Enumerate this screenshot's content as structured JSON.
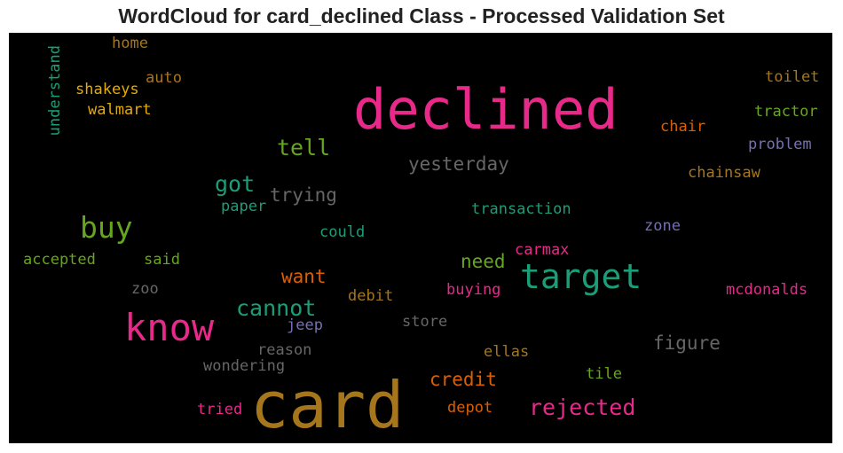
{
  "chart_data": {
    "type": "wordcloud",
    "title": "WordCloud for card_declined Class - Processed Validation Set",
    "background": "#000000",
    "palette": {
      "pink": "#e7298a",
      "orange": "#d95f02",
      "green": "#1b9e77",
      "lime": "#66a61e",
      "gold": "#a6761d",
      "amber": "#e6ab02",
      "grey": "#666666",
      "purple": "#7570b3"
    },
    "words": [
      {
        "text": "card",
        "color": "gold",
        "weight": 1.0
      },
      {
        "text": "declined",
        "color": "pink",
        "weight": 0.97
      },
      {
        "text": "know",
        "color": "pink",
        "weight": 0.7
      },
      {
        "text": "target",
        "color": "green",
        "weight": 0.62
      },
      {
        "text": "buy",
        "color": "lime",
        "weight": 0.55
      },
      {
        "text": "cannot",
        "color": "green",
        "weight": 0.45
      },
      {
        "text": "tell",
        "color": "lime",
        "weight": 0.45
      },
      {
        "text": "got",
        "color": "green",
        "weight": 0.45
      },
      {
        "text": "rejected",
        "color": "pink",
        "weight": 0.42
      },
      {
        "text": "yesterday",
        "color": "grey",
        "weight": 0.38
      },
      {
        "text": "figure",
        "color": "grey",
        "weight": 0.38
      },
      {
        "text": "trying",
        "color": "grey",
        "weight": 0.38
      },
      {
        "text": "credit",
        "color": "orange",
        "weight": 0.36
      },
      {
        "text": "want",
        "color": "orange",
        "weight": 0.36
      },
      {
        "text": "need",
        "color": "lime",
        "weight": 0.36
      },
      {
        "text": "understand",
        "color": "green",
        "weight": 0.28
      },
      {
        "text": "home",
        "color": "gold",
        "weight": 0.28
      },
      {
        "text": "auto",
        "color": "gold",
        "weight": 0.28
      },
      {
        "text": "shakeys",
        "color": "amber",
        "weight": 0.28
      },
      {
        "text": "walmart",
        "color": "amber",
        "weight": 0.28
      },
      {
        "text": "toilet",
        "color": "gold",
        "weight": 0.28
      },
      {
        "text": "tractor",
        "color": "lime",
        "weight": 0.28
      },
      {
        "text": "chair",
        "color": "orange",
        "weight": 0.28
      },
      {
        "text": "problem",
        "color": "purple",
        "weight": 0.28
      },
      {
        "text": "chainsaw",
        "color": "gold",
        "weight": 0.28
      },
      {
        "text": "paper",
        "color": "green",
        "weight": 0.28
      },
      {
        "text": "transaction",
        "color": "green",
        "weight": 0.28
      },
      {
        "text": "zone",
        "color": "purple",
        "weight": 0.28
      },
      {
        "text": "could",
        "color": "green",
        "weight": 0.28
      },
      {
        "text": "carmax",
        "color": "pink",
        "weight": 0.28
      },
      {
        "text": "accepted",
        "color": "lime",
        "weight": 0.28
      },
      {
        "text": "said",
        "color": "lime",
        "weight": 0.28
      },
      {
        "text": "zoo",
        "color": "grey",
        "weight": 0.28
      },
      {
        "text": "debit",
        "color": "gold",
        "weight": 0.28
      },
      {
        "text": "buying",
        "color": "pink",
        "weight": 0.28
      },
      {
        "text": "mcdonalds",
        "color": "pink",
        "weight": 0.28
      },
      {
        "text": "jeep",
        "color": "purple",
        "weight": 0.28
      },
      {
        "text": "store",
        "color": "grey",
        "weight": 0.28
      },
      {
        "text": "reason",
        "color": "grey",
        "weight": 0.28
      },
      {
        "text": "ellas",
        "color": "gold",
        "weight": 0.28
      },
      {
        "text": "wondering",
        "color": "grey",
        "weight": 0.28
      },
      {
        "text": "tile",
        "color": "lime",
        "weight": 0.28
      },
      {
        "text": "tried",
        "color": "pink",
        "weight": 0.28
      },
      {
        "text": "depot",
        "color": "orange",
        "weight": 0.28
      }
    ]
  }
}
